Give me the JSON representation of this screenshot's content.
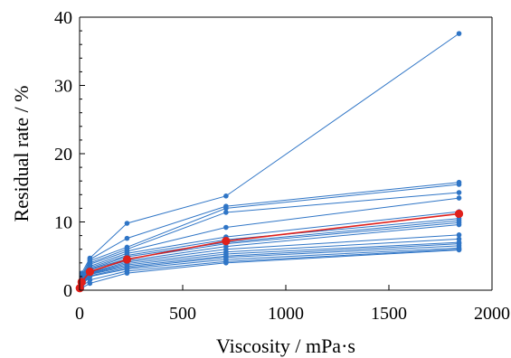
{
  "chart_data": {
    "type": "line",
    "xlabel": "Viscosity / mPa·s",
    "ylabel": "Residual rate / %",
    "xlim": [
      0,
      2000
    ],
    "ylim": [
      0,
      40
    ],
    "xticks": [
      0,
      500,
      1000,
      1500,
      2000
    ],
    "yticks": [
      0,
      10,
      20,
      30,
      40
    ],
    "grid": false,
    "legend": "none",
    "x": [
      1,
      10,
      50,
      230,
      710,
      1840
    ],
    "series_color": "#2F75C6",
    "highlight_color": "#E0201B",
    "series": [
      {
        "values": [
          0.3,
          2.5,
          4.7,
          9.8,
          13.8,
          37.6
        ]
      },
      {
        "values": [
          0.3,
          2.0,
          4.5,
          7.6,
          12.3,
          15.8
        ]
      },
      {
        "values": [
          0.3,
          2.2,
          4.3,
          6.3,
          12.0,
          15.5
        ]
      },
      {
        "values": [
          0.3,
          1.9,
          4.0,
          6.0,
          11.4,
          14.3
        ]
      },
      {
        "values": [
          0.3,
          1.8,
          3.8,
          5.7,
          9.2,
          13.5
        ]
      },
      {
        "values": [
          0.3,
          1.7,
          3.5,
          5.4,
          7.8,
          11.5
        ]
      },
      {
        "values": [
          0.3,
          1.6,
          3.3,
          5.1,
          7.4,
          10.5
        ]
      },
      {
        "values": [
          0.3,
          1.5,
          3.1,
          4.9,
          7.0,
          10.2
        ]
      },
      {
        "values": [
          0.3,
          1.4,
          3.0,
          4.6,
          6.8,
          9.9
        ]
      },
      {
        "values": [
          0.3,
          1.3,
          2.8,
          4.3,
          6.4,
          9.6
        ]
      },
      {
        "values": [
          0.3,
          1.2,
          2.6,
          4.1,
          6.0,
          8.1
        ]
      },
      {
        "values": [
          0.3,
          1.1,
          2.5,
          3.9,
          5.6,
          7.5
        ]
      },
      {
        "values": [
          0.3,
          1.0,
          2.4,
          3.7,
          5.3,
          7.0
        ]
      },
      {
        "values": [
          0.3,
          0.9,
          2.3,
          3.5,
          5.0,
          6.8
        ]
      },
      {
        "values": [
          0.3,
          0.8,
          2.1,
          3.3,
          4.8,
          6.5
        ]
      },
      {
        "values": [
          0.3,
          0.7,
          2.0,
          3.1,
          4.5,
          6.2
        ]
      },
      {
        "values": [
          0.3,
          0.5,
          1.5,
          2.8,
          4.2,
          6.0
        ]
      },
      {
        "values": [
          0.3,
          0.3,
          1.0,
          2.5,
          4.0,
          5.9
        ]
      },
      {
        "values": [
          0.3,
          1.2,
          2.7,
          4.5,
          7.2,
          11.2
        ],
        "highlight": true
      }
    ]
  }
}
